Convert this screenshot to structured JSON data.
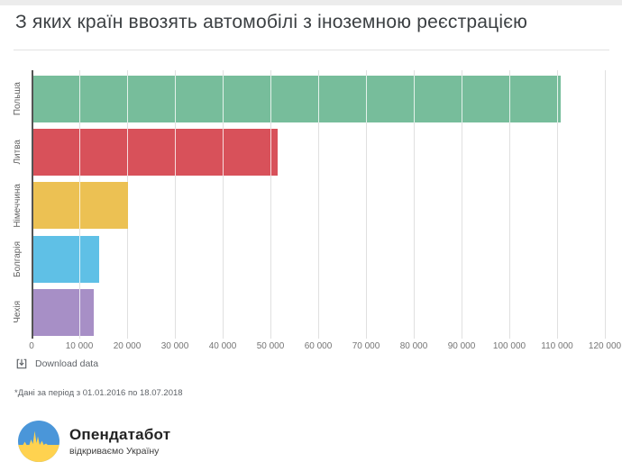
{
  "title": "З яких країн ввозять автомобілі з іноземною реєстрацією",
  "chart_data": {
    "type": "bar",
    "orientation": "horizontal",
    "title": "З яких країн ввозять автомобілі з іноземною реєстрацією",
    "categories": [
      "Польша",
      "Литва",
      "Німеччина",
      "Болгарія",
      "Чехія"
    ],
    "values": [
      110800,
      51500,
      20100,
      14200,
      13000
    ],
    "bar_colors": [
      "#77BD9B",
      "#D8515A",
      "#ECC153",
      "#5FC0E6",
      "#A78FC6"
    ],
    "xlim": [
      0,
      120000
    ],
    "x_ticks": [
      0,
      10000,
      20000,
      30000,
      40000,
      50000,
      60000,
      70000,
      80000,
      90000,
      100000,
      110000,
      120000
    ],
    "x_tick_labels": [
      "0",
      "10 000",
      "20 000",
      "30 000",
      "40 000",
      "50 000",
      "60 000",
      "70 000",
      "80 000",
      "90 000",
      "100 000",
      "110 000",
      "120 000"
    ],
    "grid": "vertical",
    "legend": "none",
    "gridline_color": "#e0e0e0",
    "axis_color": "#545454"
  },
  "download": {
    "label": "Download data"
  },
  "footnote": "*Дані за період з 01.01.2016 по 18.07.2018",
  "logo": {
    "name": "Опендатабот",
    "tagline": "відкриваємо Україну",
    "colors": {
      "blue": "#4A96D9",
      "yellow": "#FFD24F"
    }
  }
}
